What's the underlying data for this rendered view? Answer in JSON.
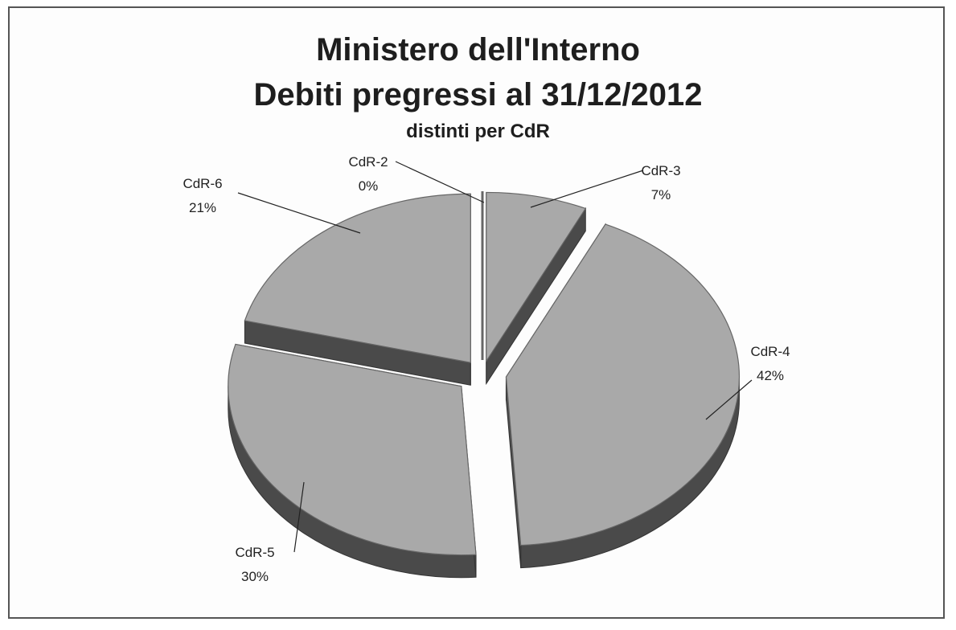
{
  "chart_data": {
    "type": "pie",
    "title": "Ministero dell'Interno",
    "subtitle": "Debiti pregressi al 31/12/2012",
    "subtitle2": "distinti per CdR",
    "slices": [
      {
        "name": "CdR-2",
        "value": 0,
        "label": "0%"
      },
      {
        "name": "CdR-3",
        "value": 7,
        "label": "7%"
      },
      {
        "name": "CdR-4",
        "value": 42,
        "label": "42%"
      },
      {
        "name": "CdR-5",
        "value": 30,
        "label": "30%"
      },
      {
        "name": "CdR-6",
        "value": 21,
        "label": "21%"
      }
    ],
    "style": "3d-exploded",
    "colors": {
      "top": "#a9a9a9",
      "side": "#4a4a4a",
      "frame": "#555555"
    }
  }
}
